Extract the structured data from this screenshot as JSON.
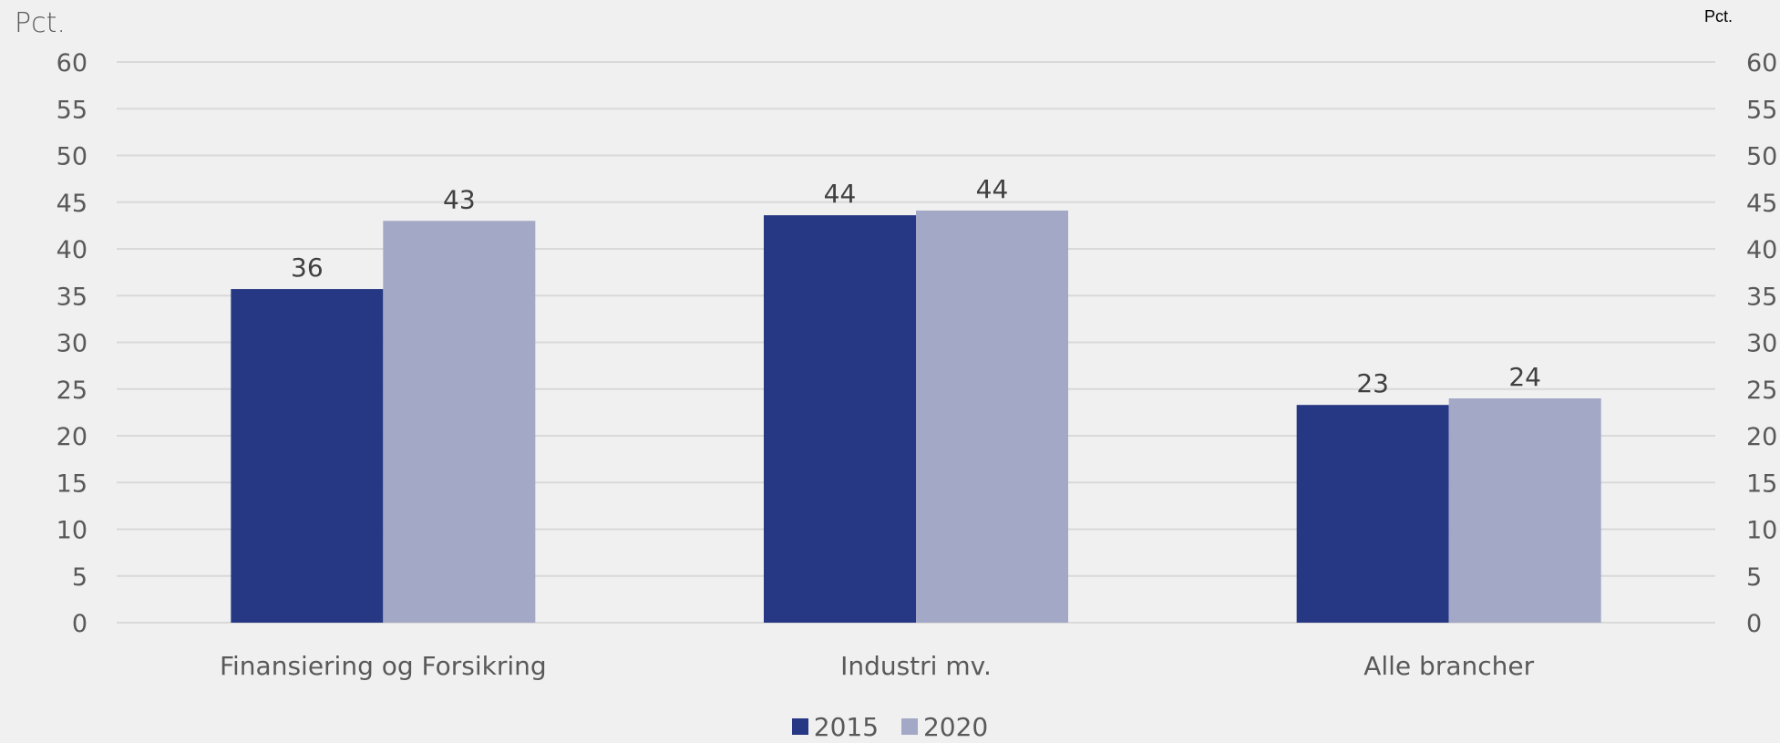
{
  "chart_data": {
    "type": "bar",
    "ylabel_left": "Pct.",
    "ylabel_right": "Pct.",
    "categories": [
      "Finansiering og Forsikring",
      "Industri mv.",
      "Alle brancher"
    ],
    "series": [
      {
        "name": "2015",
        "values": [
          35.7,
          43.6,
          23.3
        ],
        "labels": [
          "36",
          "44",
          "23"
        ],
        "color": "#263883"
      },
      {
        "name": "2020",
        "values": [
          43.0,
          44.1,
          24.0
        ],
        "labels": [
          "43",
          "44",
          "24"
        ],
        "color": "#a3a8c6"
      }
    ],
    "ylim": [
      0,
      60
    ],
    "yticks": [
      0,
      5,
      10,
      15,
      20,
      25,
      30,
      35,
      40,
      45,
      50,
      55,
      60
    ],
    "grid": true,
    "legend_position": "bottom-center"
  }
}
